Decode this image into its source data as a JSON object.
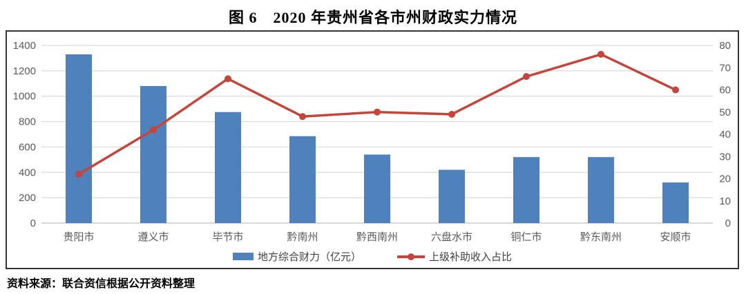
{
  "title": "图 6　2020 年贵州省各市州财政实力情况",
  "source_note": "资料来源：联合资信根据公开资料整理",
  "colors": {
    "bar": "#4F81BD",
    "line": "#C5443C",
    "grid": "#D9D9D9",
    "baseline": "#BFBFBF",
    "axis_text": "#595959",
    "border": "#333333"
  },
  "chart_data": {
    "type": "bar",
    "subtype": "bar+line-combo",
    "title": "图 6　2020 年贵州省各市州财政实力情况",
    "categories": [
      "贵阳市",
      "遵义市",
      "毕节市",
      "黔南州",
      "黔西南州",
      "六盘水市",
      "铜仁市",
      "黔东南州",
      "安顺市"
    ],
    "series": [
      {
        "name": "地方综合财力（亿元）",
        "type": "bar",
        "axis": "left",
        "color": "#4F81BD",
        "values": [
          1330,
          1080,
          875,
          685,
          540,
          420,
          520,
          520,
          320
        ]
      },
      {
        "name": "上级补助收入占比",
        "type": "line",
        "axis": "right",
        "color": "#C5443C",
        "values": [
          22,
          42,
          65,
          48,
          50,
          49,
          66,
          76,
          60
        ]
      }
    ],
    "left_axis": {
      "min": 0,
      "max": 1400,
      "step": 200,
      "ticks": [
        0,
        200,
        400,
        600,
        800,
        1000,
        1200,
        1400
      ]
    },
    "right_axis": {
      "min": 0,
      "max": 80,
      "step": 10,
      "ticks": [
        0,
        10,
        20,
        30,
        40,
        50,
        60,
        70,
        80
      ]
    },
    "grid": true,
    "legend_position": "bottom",
    "xlabel": "",
    "ylabel_left": "",
    "ylabel_right": ""
  }
}
